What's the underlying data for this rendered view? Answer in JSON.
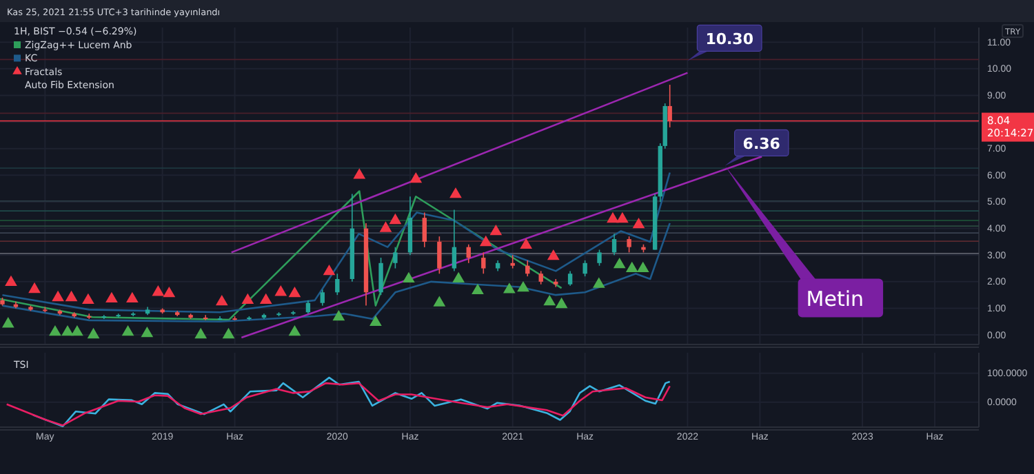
{
  "chart_data": [
    {
      "type": "candlestick",
      "title": "1H, BIST −0.54 (−6.29%)",
      "subtitle": "Kas 25, 2021 21:55 UTC+3 tarihinde yayınlandı",
      "ylabel": "TRY",
      "x": [
        "2018-02",
        "2018-03",
        "2018-04",
        "2018-05",
        "2018-06",
        "2018-07",
        "2018-08",
        "2018-09",
        "2018-10",
        "2018-11",
        "2018-12",
        "2019-01",
        "2019-02",
        "2019-03",
        "2019-04",
        "2019-05",
        "2019-06",
        "2019-07",
        "2019-08",
        "2019-09",
        "2019-10",
        "2019-11",
        "2019-12",
        "2020-01",
        "2020-02",
        "2020-03",
        "2020-04",
        "2020-05",
        "2020-06",
        "2020-07",
        "2020-08",
        "2020-09",
        "2020-10",
        "2020-11",
        "2020-12",
        "2021-01",
        "2021-02",
        "2021-03",
        "2021-04",
        "2021-05",
        "2021-06",
        "2021-07",
        "2021-08",
        "2021-09",
        "2021-10",
        "2021-10-25",
        "2021-11-05",
        "2021-11-15",
        "2021-11-25"
      ],
      "ohlc": [
        [
          1.3,
          1.4,
          1.1,
          1.15
        ],
        [
          1.15,
          1.25,
          1.0,
          1.05
        ],
        [
          1.05,
          1.1,
          0.9,
          0.95
        ],
        [
          0.95,
          1.05,
          0.85,
          0.9
        ],
        [
          0.9,
          0.95,
          0.75,
          0.8
        ],
        [
          0.8,
          0.85,
          0.65,
          0.7
        ],
        [
          0.7,
          0.8,
          0.6,
          0.65
        ],
        [
          0.65,
          0.75,
          0.6,
          0.7
        ],
        [
          0.7,
          0.8,
          0.65,
          0.75
        ],
        [
          0.75,
          0.85,
          0.7,
          0.8
        ],
        [
          0.8,
          1.05,
          0.75,
          0.95
        ],
        [
          0.95,
          1.0,
          0.8,
          0.85
        ],
        [
          0.85,
          0.9,
          0.7,
          0.75
        ],
        [
          0.75,
          0.8,
          0.6,
          0.65
        ],
        [
          0.65,
          0.75,
          0.55,
          0.6
        ],
        [
          0.6,
          0.7,
          0.55,
          0.62
        ],
        [
          0.62,
          0.7,
          0.55,
          0.6
        ],
        [
          0.6,
          0.7,
          0.55,
          0.65
        ],
        [
          0.65,
          0.8,
          0.6,
          0.75
        ],
        [
          0.75,
          0.85,
          0.7,
          0.8
        ],
        [
          0.8,
          0.9,
          0.75,
          0.85
        ],
        [
          0.85,
          1.3,
          0.8,
          1.2
        ],
        [
          1.2,
          1.7,
          1.1,
          1.6
        ],
        [
          1.6,
          2.3,
          1.5,
          2.1
        ],
        [
          2.1,
          5.3,
          2.0,
          4.0
        ],
        [
          4.0,
          4.2,
          1.1,
          1.6
        ],
        [
          1.6,
          2.9,
          1.5,
          2.7
        ],
        [
          2.7,
          3.3,
          2.5,
          3.1
        ],
        [
          3.1,
          5.2,
          3.0,
          4.4
        ],
        [
          4.4,
          4.6,
          3.3,
          3.5
        ],
        [
          3.5,
          3.7,
          2.3,
          2.5
        ],
        [
          2.5,
          4.7,
          2.4,
          3.3
        ],
        [
          3.3,
          3.4,
          2.7,
          2.9
        ],
        [
          2.9,
          3.1,
          2.3,
          2.5
        ],
        [
          2.5,
          2.8,
          2.4,
          2.7
        ],
        [
          2.7,
          3.0,
          2.5,
          2.6
        ],
        [
          2.6,
          2.8,
          2.2,
          2.3
        ],
        [
          2.3,
          2.4,
          1.9,
          2.0
        ],
        [
          2.0,
          2.1,
          1.8,
          1.9
        ],
        [
          1.9,
          2.4,
          1.85,
          2.3
        ],
        [
          2.3,
          2.8,
          2.2,
          2.7
        ],
        [
          2.7,
          3.2,
          2.6,
          3.1
        ],
        [
          3.1,
          3.8,
          3.0,
          3.6
        ],
        [
          3.6,
          3.7,
          3.1,
          3.3
        ],
        [
          3.3,
          3.4,
          3.1,
          3.2
        ],
        [
          3.2,
          5.3,
          3.2,
          5.2
        ],
        [
          5.2,
          7.2,
          5.0,
          7.1
        ],
        [
          7.1,
          8.7,
          7.0,
          8.6
        ],
        [
          8.6,
          9.4,
          7.8,
          8.04
        ]
      ],
      "colors": [
        "#ef5350",
        "#ef5350",
        "#ef5350",
        "#ef5350",
        "#ef5350",
        "#ef5350",
        "#ef5350",
        "#26a69a",
        "#26a69a",
        "#26a69a",
        "#26a69a",
        "#ef5350",
        "#ef5350",
        "#ef5350",
        "#ef5350",
        "#26a69a",
        "#ef5350",
        "#26a69a",
        "#26a69a",
        "#26a69a",
        "#26a69a",
        "#26a69a",
        "#26a69a",
        "#26a69a",
        "#26a69a",
        "#ef5350",
        "#26a69a",
        "#26a69a",
        "#26a69a",
        "#ef5350",
        "#ef5350",
        "#26a69a",
        "#ef5350",
        "#ef5350",
        "#26a69a",
        "#ef5350",
        "#ef5350",
        "#ef5350",
        "#ef5350",
        "#26a69a",
        "#26a69a",
        "#26a69a",
        "#26a69a",
        "#ef5350",
        "#ef5350",
        "#26a69a",
        "#26a69a",
        "#26a69a",
        "#ef5350"
      ],
      "series": [
        {
          "type": "line",
          "name": "ZigZag++ Lucem Anb",
          "color": "#2e9e5b",
          "x": [
            "2018-01-27",
            "2018-08-08",
            "2019-05-20",
            "2020-02-16",
            "2020-03-21",
            "2020-06-13",
            "2021-01-06",
            "2021-04-13"
          ],
          "values": [
            1.35,
            0.67,
            0.57,
            5.4,
            1.1,
            5.2,
            2.85,
            1.76
          ]
        },
        {
          "type": "line",
          "name": "KC",
          "color": "#1e5a8a",
          "x": [
            "2018-02-01",
            "2018-08-01",
            "2019-05-01",
            "2019-11-15",
            "2020-02-15",
            "2020-04-15",
            "2020-06-15",
            "2020-09-01",
            "2020-12-01",
            "2021-04-01",
            "2021-08-15",
            "2021-10-15",
            "2021-11-25"
          ],
          "values": [
            1.5,
            0.95,
            0.85,
            1.3,
            3.8,
            3.3,
            4.6,
            4.3,
            3.2,
            2.4,
            3.9,
            3.5,
            6.1
          ]
        },
        {
          "type": "line",
          "color": "#1e5a8a",
          "x": [
            "2018-02-01",
            "2018-08-01",
            "2019-05-01",
            "2019-11-15",
            "2020-01-15",
            "2020-03-15",
            "2020-05-01",
            "2020-07-15",
            "2020-10-15",
            "2021-01-15",
            "2021-04-01",
            "2021-06-01",
            "2021-09-15",
            "2021-10-15",
            "2021-11-25"
          ],
          "values": [
            1.1,
            0.55,
            0.5,
            0.7,
            0.8,
            0.6,
            1.6,
            2.0,
            1.9,
            1.8,
            1.5,
            1.6,
            2.3,
            2.1,
            4.2
          ]
        },
        {
          "type": "line",
          "color": "#9c27b0",
          "x": [
            "2019-05-25",
            "2022-01-01"
          ],
          "values": [
            3.1,
            9.85
          ]
        },
        {
          "type": "line",
          "color": "#9c27b0",
          "x": [
            "2019-06-15",
            "2022-06-05"
          ],
          "values": [
            -0.1,
            6.7
          ]
        },
        {
          "type": "scatter",
          "name": "Fractals",
          "color": "#f23645",
          "marker": "triangle",
          "x": [
            "2018-02-19",
            "2018-04-09",
            "2018-05-28",
            "2018-06-25",
            "2018-07-30",
            "2018-09-17",
            "2018-10-30",
            "2018-12-23",
            "2019-01-15",
            "2019-05-05",
            "2019-06-28",
            "2019-08-05",
            "2019-09-05",
            "2019-10-04",
            "2019-12-15",
            "2020-02-16",
            "2020-04-11",
            "2020-05-01",
            "2020-06-13",
            "2020-09-04",
            "2020-11-06",
            "2020-11-27",
            "2021-01-29",
            "2021-03-27",
            "2021-07-29",
            "2021-08-18",
            "2021-09-21"
          ],
          "values": [
            1.97,
            1.71,
            1.4,
            1.4,
            1.3,
            1.35,
            1.35,
            1.6,
            1.55,
            1.24,
            1.3,
            1.3,
            1.6,
            1.55,
            2.38,
            6.0,
            4.0,
            4.3,
            5.85,
            5.28,
            3.47,
            3.88,
            3.37,
            2.95,
            4.35,
            4.35,
            4.14
          ]
        },
        {
          "type": "scatter",
          "color": "#4caf50",
          "marker": "triangle",
          "x": [
            "2018-02-13",
            "2018-05-22",
            "2018-06-17",
            "2018-07-07",
            "2018-08-10",
            "2018-10-21",
            "2018-11-30",
            "2019-03-22",
            "2019-05-19",
            "2019-10-04",
            "2020-01-04",
            "2020-03-21",
            "2020-05-29",
            "2020-08-01",
            "2020-09-10",
            "2020-10-20",
            "2020-12-25",
            "2021-01-23",
            "2021-03-19",
            "2021-04-13",
            "2021-06-30",
            "2021-08-12",
            "2021-09-07",
            "2021-09-30"
          ],
          "values": [
            0.41,
            0.1,
            0.1,
            0.1,
            0,
            0.1,
            0.05,
            0,
            0,
            0.1,
            0.67,
            0.47,
            2.1,
            1.2,
            2.1,
            1.66,
            1.7,
            1.76,
            1.24,
            1.14,
            1.9,
            2.64,
            2.49,
            2.49
          ]
        }
      ],
      "ref_lines": [
        {
          "axis": "y",
          "value": 10.35,
          "color": "#4a1f2a"
        },
        {
          "axis": "y",
          "value": 8.33,
          "color": "#4a1f2a"
        },
        {
          "axis": "y",
          "value": 8.04,
          "color": "#f23645",
          "label": "8.04 20:14:27"
        },
        {
          "axis": "y",
          "value": 6.27,
          "color": "#1f3d44"
        },
        {
          "axis": "y",
          "value": 5.03,
          "color": "#2c3e48"
        },
        {
          "axis": "y",
          "value": 4.66,
          "color": "#1f4a4a"
        },
        {
          "axis": "y",
          "value": 4.3,
          "color": "#1f5a3a"
        },
        {
          "axis": "y",
          "value": 4.09,
          "color": "#2a4a40"
        },
        {
          "axis": "y",
          "value": 3.83,
          "color": "#3a4250"
        },
        {
          "axis": "y",
          "value": 3.52,
          "color": "#5a2a30"
        },
        {
          "axis": "y",
          "value": 3.06,
          "color": "#5d606b"
        }
      ],
      "annotations": [
        "Auto Fib Extension",
        {
          "text": "10.30",
          "x": "2022-01-01",
          "y": 10.3
        },
        {
          "text": "6.36",
          "x": "2022-03-20",
          "y": 6.36
        },
        "Metin"
      ],
      "xlim": [
        "2018-01-27",
        "2023-09-01"
      ],
      "xticks": [
        {
          "value": "2018-05-01",
          "label": null
        },
        {
          "value": "2019-01-01",
          "label": null
        },
        {
          "value": "2019-06-01",
          "label": null
        },
        {
          "value": "2020-01-01",
          "label": null
        },
        {
          "value": "2020-06-01",
          "label": null
        },
        {
          "value": "2021-01-01",
          "label": null
        },
        {
          "value": "2021-06-01",
          "label": null
        },
        {
          "value": "2022-01-01",
          "label": null
        },
        {
          "value": "2022-06-01",
          "label": null
        },
        {
          "value": "2023-01-01",
          "label": null
        },
        {
          "value": "2023-06-01",
          "label": null
        }
      ],
      "ylim": [
        -0.36,
        11.55
      ],
      "yticks": [
        {
          "value": 0,
          "label": "0.00"
        },
        {
          "value": 1,
          "label": "1.00"
        },
        {
          "value": 2,
          "label": "2.00"
        },
        {
          "value": 3,
          "label": "3.00"
        },
        {
          "value": 4,
          "label": "4.00"
        },
        {
          "value": 5,
          "label": "5.00"
        },
        {
          "value": 6,
          "label": "6.00"
        },
        {
          "value": 7,
          "label": "7.00"
        },
        {
          "value": 8,
          "label": null
        },
        {
          "value": 9,
          "label": "9.00"
        },
        {
          "value": 10,
          "label": "10.00"
        },
        {
          "value": 11,
          "label": "11.00"
        }
      ],
      "tick_labels": "y",
      "grid": true,
      "legend": "top left"
    },
    {
      "type": "line",
      "title": "TSI",
      "series": [
        {
          "color": "#3bb3e0",
          "x": [
            "2018-04-06",
            "2018-06-07",
            "2018-07-04",
            "2018-08-14",
            "2018-09-11",
            "2018-10-29",
            "2018-11-19",
            "2018-12-16",
            "2019-01-12",
            "2019-02-02",
            "2019-03-29",
            "2019-05-09",
            "2019-05-23",
            "2019-07-03",
            "2019-08-27",
            "2019-09-10",
            "2019-10-21",
            "2019-12-15",
            "2020-01-05",
            "2020-02-15",
            "2020-03-14",
            "2020-05-01",
            "2020-06-04",
            "2020-06-25",
            "2020-07-22",
            "2020-09-15",
            "2020-11-09",
            "2020-11-30",
            "2021-01-17",
            "2021-03-13",
            "2021-04-10",
            "2021-04-30",
            "2021-05-21",
            "2021-06-11",
            "2021-07-01",
            "2021-08-12",
            "2021-10-05",
            "2021-10-26",
            "2021-11-16",
            "2021-11-25"
          ],
          "values": [
            -44,
            -83,
            -32,
            -39,
            10,
            7,
            -7,
            32,
            29,
            -7,
            -41,
            -7,
            -32,
            37,
            41,
            66,
            17,
            85,
            61,
            71,
            -12,
            32,
            12,
            32,
            -12,
            10,
            -22,
            -2,
            -12,
            -37,
            -61,
            -32,
            32,
            56,
            37,
            59,
            5,
            -5,
            66,
            71
          ]
        },
        {
          "color": "#e91e63",
          "x": [
            "2018-02-10",
            "2018-05-03",
            "2018-06-07",
            "2018-07-24",
            "2018-10-01",
            "2018-11-12",
            "2018-12-16",
            "2019-01-12",
            "2019-02-16",
            "2019-03-22",
            "2019-05-23",
            "2019-06-26",
            "2019-08-27",
            "2019-10-01",
            "2019-11-04",
            "2019-12-08",
            "2020-01-12",
            "2020-02-15",
            "2020-03-27",
            "2020-05-01",
            "2020-06-04",
            "2020-07-08",
            "2020-08-19",
            "2020-11-09",
            "2020-12-21",
            "2021-03-13",
            "2021-04-16",
            "2021-05-21",
            "2021-06-17",
            "2021-08-25",
            "2021-10-05",
            "2021-11-09",
            "2021-11-25"
          ],
          "values": [
            -7,
            -61,
            -80,
            -37,
            5,
            2,
            24,
            22,
            -20,
            -41,
            -20,
            17,
            46,
            32,
            37,
            66,
            61,
            66,
            5,
            27,
            27,
            17,
            5,
            -17,
            -7,
            -27,
            -46,
            5,
            37,
            49,
            17,
            7,
            56
          ]
        }
      ],
      "xlim": [
        "2018-01-27",
        "2023-09-01"
      ],
      "xticks": [
        {
          "value": "2018-05-01",
          "label": "May"
        },
        {
          "value": "2019-01-01",
          "label": "2019"
        },
        {
          "value": "2019-06-01",
          "label": "Haz"
        },
        {
          "value": "2020-01-01",
          "label": "2020"
        },
        {
          "value": "2020-06-01",
          "label": "Haz"
        },
        {
          "value": "2021-01-01",
          "label": "2021"
        },
        {
          "value": "2021-06-01",
          "label": "Haz"
        },
        {
          "value": "2022-01-01",
          "label": "2022"
        },
        {
          "value": "2022-06-01",
          "label": "Haz"
        },
        {
          "value": "2023-01-01",
          "label": "2023"
        },
        {
          "value": "2023-06-01",
          "label": "Haz"
        }
      ],
      "ylim": [
        -86,
        171
      ],
      "yticks": [
        {
          "value": 0,
          "label": "0.0000"
        },
        {
          "value": 100,
          "label": "100.0000"
        }
      ],
      "grid": true
    }
  ]
}
